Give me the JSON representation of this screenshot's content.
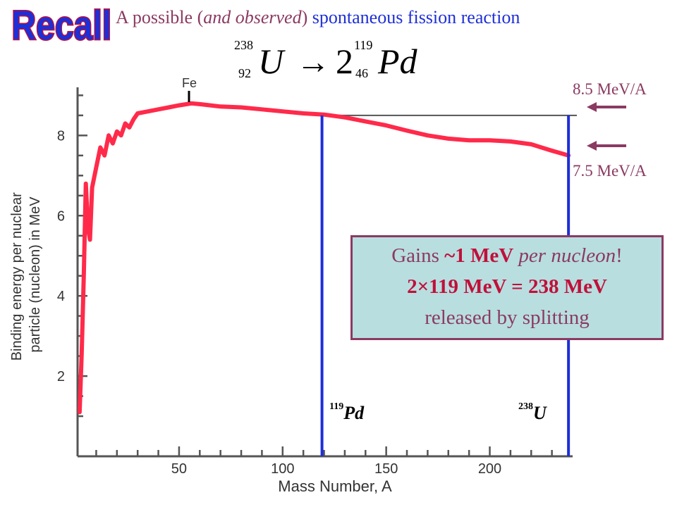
{
  "header": {
    "recall": "Recall",
    "subtitle_a": "A possible (",
    "subtitle_b": "and observed",
    "subtitle_c": ") ",
    "subtitle_d": "spontaneous fission reaction"
  },
  "equation": {
    "reactant": "U",
    "reactant_mass": "238",
    "reactant_z": "92",
    "arrow": "→",
    "coef": "2",
    "product": "Pd",
    "product_mass": "119",
    "product_z": "46"
  },
  "labels": {
    "upper": "8.5 MeV/A",
    "lower": "7.5 MeV/A",
    "pd_mass": "119",
    "pd_symbol": "Pd",
    "u_mass": "238",
    "u_symbol": "U",
    "fe": "Fe"
  },
  "callout": {
    "line1_a": "Gains ",
    "line1_b": "~1 MeV",
    "line1_c": " per nucleon",
    "line1_d": "!",
    "line2": "2×119 MeV = 238 MeV",
    "line3": "released by splitting"
  },
  "chart_data": {
    "type": "line",
    "xlabel": "Mass Number, A",
    "ylabel": "Binding energy per nuclear particle (nucleon) in MeV",
    "xlim": [
      1,
      240
    ],
    "ylim": [
      0,
      9.2
    ],
    "x_ticks": [
      50,
      100,
      150,
      200
    ],
    "y_ticks": [
      2,
      4,
      6,
      8
    ],
    "series": [
      {
        "color": "#ff2a4a",
        "x": [
          2,
          3,
          4,
          5,
          6,
          7,
          8,
          10,
          12,
          14,
          16,
          18,
          20,
          22,
          24,
          26,
          28,
          30,
          35,
          40,
          45,
          50,
          56,
          60,
          70,
          80,
          90,
          100,
          110,
          120,
          130,
          140,
          150,
          160,
          170,
          180,
          190,
          200,
          210,
          220,
          230,
          238
        ],
        "y": [
          1.1,
          2.6,
          4.5,
          6.8,
          5.7,
          5.4,
          6.7,
          7.2,
          7.7,
          7.5,
          8.0,
          7.8,
          8.1,
          8.0,
          8.3,
          8.2,
          8.4,
          8.55,
          8.6,
          8.65,
          8.7,
          8.75,
          8.8,
          8.78,
          8.72,
          8.7,
          8.65,
          8.6,
          8.55,
          8.52,
          8.45,
          8.35,
          8.25,
          8.12,
          8.0,
          7.92,
          7.88,
          7.88,
          7.85,
          7.78,
          7.62,
          7.5
        ]
      }
    ],
    "reference_line": {
      "y": 8.5,
      "x_from": 120,
      "x_to": 240
    },
    "markers": [
      {
        "label": "Pd",
        "mass": 119
      },
      {
        "label": "U",
        "mass": 238
      }
    ],
    "annotations": [
      "Fe"
    ]
  }
}
